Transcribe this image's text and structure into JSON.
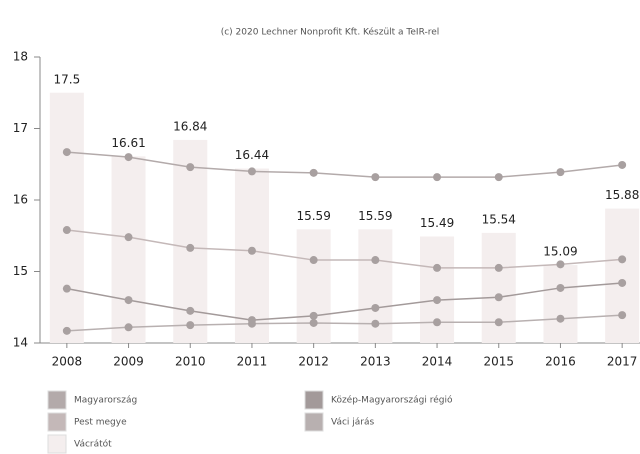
{
  "chart_data": {
    "type": "bar",
    "title": "(c) 2020 Lechner Nonprofit Kft. Készült a TeIR-rel",
    "categories": [
      "2008",
      "2009",
      "2010",
      "2011",
      "2012",
      "2013",
      "2014",
      "2015",
      "2016",
      "2017"
    ],
    "ylim": [
      14,
      18
    ],
    "yticks": [
      14,
      15,
      16,
      17,
      18
    ],
    "series": [
      {
        "name": "Magyarország",
        "type": "line",
        "color": "#b3aaaa",
        "values": [
          16.67,
          16.6,
          16.46,
          16.4,
          16.38,
          16.32,
          16.32,
          16.32,
          16.39,
          16.49
        ]
      },
      {
        "name": "Pest megye",
        "type": "line",
        "color": "#c4b8b8",
        "values": [
          15.58,
          15.48,
          15.33,
          15.29,
          15.16,
          15.16,
          15.05,
          15.05,
          15.1,
          15.17
        ]
      },
      {
        "name": "Vácrátót",
        "type": "bar",
        "color": "#f4eeee",
        "values": [
          17.5,
          16.61,
          16.84,
          16.44,
          15.59,
          15.59,
          15.49,
          15.54,
          15.09,
          15.88
        ]
      },
      {
        "name": "Közép-Magyarországi régió",
        "type": "line",
        "color": "#a39a9a",
        "values": [
          14.76,
          14.6,
          14.45,
          14.32,
          14.38,
          14.49,
          14.6,
          14.64,
          14.77,
          14.84
        ]
      },
      {
        "name": "Váci járás",
        "type": "line",
        "color": "#b8b0b0",
        "values": [
          14.17,
          14.22,
          14.25,
          14.27,
          14.28,
          14.27,
          14.29,
          14.29,
          14.34,
          14.39
        ]
      }
    ]
  }
}
